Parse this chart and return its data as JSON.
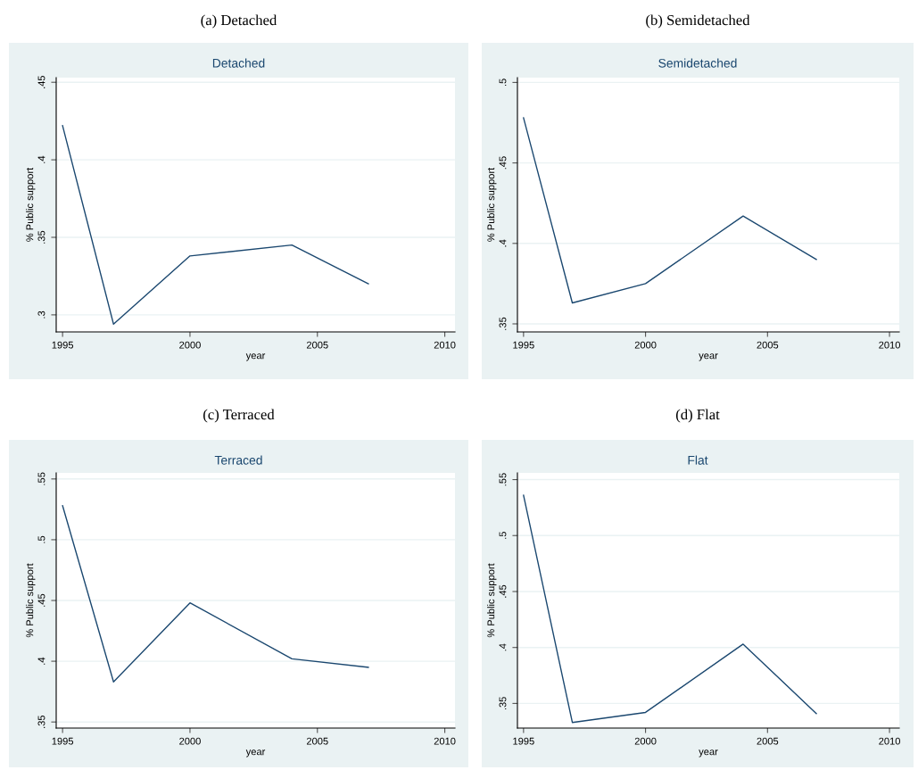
{
  "chart_data": [
    {
      "type": "line",
      "title": "(a) Detached",
      "subtitle": "Detached",
      "xlabel": "year",
      "ylabel": "% Public support",
      "x": [
        1995,
        1997,
        2000,
        2004,
        2007
      ],
      "series": [
        {
          "color": "#1a476f",
          "values": [
            0.422,
            0.294,
            0.338,
            0.345,
            0.32
          ]
        }
      ],
      "xlim": [
        1994.75,
        2010.4
      ],
      "xticks": [
        1995,
        2000,
        2005,
        2010
      ],
      "ylim": [
        0.289,
        0.453
      ],
      "yticks": [
        {
          "value": 0.3,
          "label": ".3"
        },
        {
          "value": 0.35,
          "label": ".35"
        },
        {
          "value": 0.4,
          "label": ".4"
        },
        {
          "value": 0.45,
          "label": ".45"
        }
      ],
      "grid": "y"
    },
    {
      "type": "line",
      "title": "(b) Semidetached",
      "subtitle": "Semidetached",
      "xlabel": "year",
      "ylabel": "% Public support",
      "x": [
        1995,
        1997,
        2000,
        2004,
        2007
      ],
      "series": [
        {
          "color": "#1a476f",
          "values": [
            0.478,
            0.363,
            0.375,
            0.417,
            0.39
          ]
        }
      ],
      "xlim": [
        1994.75,
        2010.4
      ],
      "xticks": [
        1995,
        2000,
        2005,
        2010
      ],
      "ylim": [
        0.345,
        0.503
      ],
      "yticks": [
        {
          "value": 0.35,
          "label": ".35"
        },
        {
          "value": 0.4,
          "label": ".4"
        },
        {
          "value": 0.45,
          "label": ".45"
        },
        {
          "value": 0.5,
          "label": ".5"
        }
      ],
      "grid": "y"
    },
    {
      "type": "line",
      "title": "(c) Terraced",
      "subtitle": "Terraced",
      "xlabel": "year",
      "ylabel": "% Public support",
      "x": [
        1995,
        1997,
        2000,
        2004,
        2007
      ],
      "series": [
        {
          "color": "#1a476f",
          "values": [
            0.528,
            0.383,
            0.448,
            0.402,
            0.395
          ]
        }
      ],
      "xlim": [
        1994.75,
        2010.4
      ],
      "xticks": [
        1995,
        2000,
        2005,
        2010
      ],
      "ylim": [
        0.345,
        0.555
      ],
      "yticks": [
        {
          "value": 0.35,
          "label": ".35"
        },
        {
          "value": 0.4,
          "label": ".4"
        },
        {
          "value": 0.45,
          "label": ".45"
        },
        {
          "value": 0.5,
          "label": ".5"
        },
        {
          "value": 0.55,
          "label": ".55"
        }
      ],
      "grid": "y"
    },
    {
      "type": "line",
      "title": "(d) Flat",
      "subtitle": "Flat",
      "xlabel": "year",
      "ylabel": "% Public support",
      "x": [
        1995,
        1997,
        2000,
        2004,
        2007
      ],
      "series": [
        {
          "color": "#1a476f",
          "values": [
            0.536,
            0.333,
            0.342,
            0.403,
            0.341
          ]
        }
      ],
      "xlim": [
        1994.75,
        2010.4
      ],
      "xticks": [
        1995,
        2000,
        2005,
        2010
      ],
      "ylim": [
        0.328,
        0.556
      ],
      "yticks": [
        {
          "value": 0.35,
          "label": ".35"
        },
        {
          "value": 0.4,
          "label": ".4"
        },
        {
          "value": 0.45,
          "label": ".45"
        },
        {
          "value": 0.5,
          "label": ".5"
        },
        {
          "value": 0.55,
          "label": ".55"
        }
      ],
      "grid": "y"
    }
  ]
}
